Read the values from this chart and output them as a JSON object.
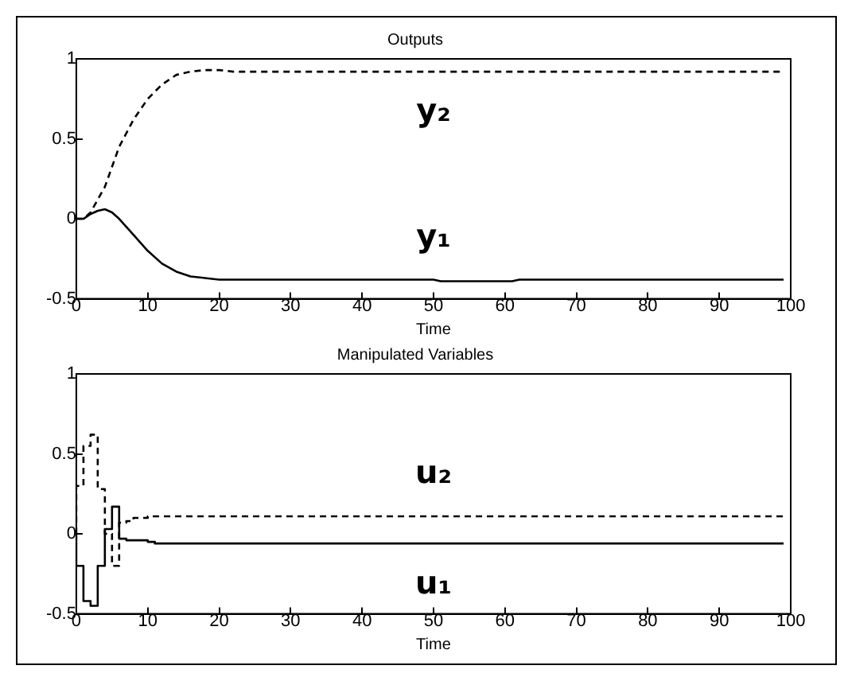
{
  "chart_data": [
    {
      "type": "line",
      "title": "Outputs",
      "xlabel": "Time",
      "xlim": [
        0,
        100
      ],
      "xticks": [
        0,
        10,
        20,
        30,
        40,
        50,
        60,
        70,
        80,
        90,
        100
      ],
      "ylim": [
        -0.5,
        1
      ],
      "yticks": [
        -0.5,
        0,
        0.5,
        1
      ],
      "grid": false,
      "legend": false,
      "marker": "none",
      "series": [
        {
          "name": "y₁",
          "color": "#000000",
          "line_style": "solid",
          "x": [
            0,
            1,
            2,
            3,
            4,
            5,
            6,
            8,
            10,
            12,
            14,
            16,
            18,
            20,
            50,
            51,
            61,
            62,
            99
          ],
          "values": [
            0,
            0,
            0.03,
            0.05,
            0.06,
            0.04,
            0,
            -0.1,
            -0.2,
            -0.28,
            -0.33,
            -0.36,
            -0.37,
            -0.38,
            -0.38,
            -0.39,
            -0.39,
            -0.38,
            -0.38
          ]
        },
        {
          "name": "y₂",
          "color": "#000000",
          "line_style": "dashed",
          "x": [
            0,
            1,
            2,
            4,
            6,
            8,
            10,
            12,
            14,
            16,
            18,
            20,
            22,
            99
          ],
          "values": [
            0,
            0,
            0.04,
            0.2,
            0.45,
            0.62,
            0.75,
            0.84,
            0.9,
            0.92,
            0.93,
            0.93,
            0.92,
            0.92
          ]
        }
      ]
    },
    {
      "type": "step",
      "title": "Manipulated Variables",
      "xlabel": "Time",
      "xlim": [
        0,
        100
      ],
      "xticks": [
        0,
        10,
        20,
        30,
        40,
        50,
        60,
        70,
        80,
        90,
        100
      ],
      "ylim": [
        -0.5,
        1
      ],
      "yticks": [
        -0.5,
        0,
        0.5,
        1
      ],
      "grid": false,
      "legend": false,
      "marker": "none",
      "series": [
        {
          "name": "u₁",
          "color": "#000000",
          "line_style": "solid",
          "x": [
            0,
            1,
            2,
            3,
            4,
            5,
            6,
            7,
            10,
            11,
            32,
            99
          ],
          "values": [
            0,
            -0.2,
            -0.42,
            -0.45,
            -0.2,
            0.03,
            0.17,
            -0.03,
            -0.04,
            -0.05,
            -0.06,
            -0.06
          ]
        },
        {
          "name": "u₂",
          "color": "#000000",
          "line_style": "dashed",
          "x": [
            0,
            1,
            2,
            3,
            4,
            5,
            6,
            7,
            8,
            10,
            11,
            99
          ],
          "values": [
            0,
            0.3,
            0.55,
            0.62,
            0.28,
            0,
            -0.2,
            0.07,
            0.08,
            0.1,
            0.11,
            0.11
          ]
        }
      ]
    }
  ]
}
